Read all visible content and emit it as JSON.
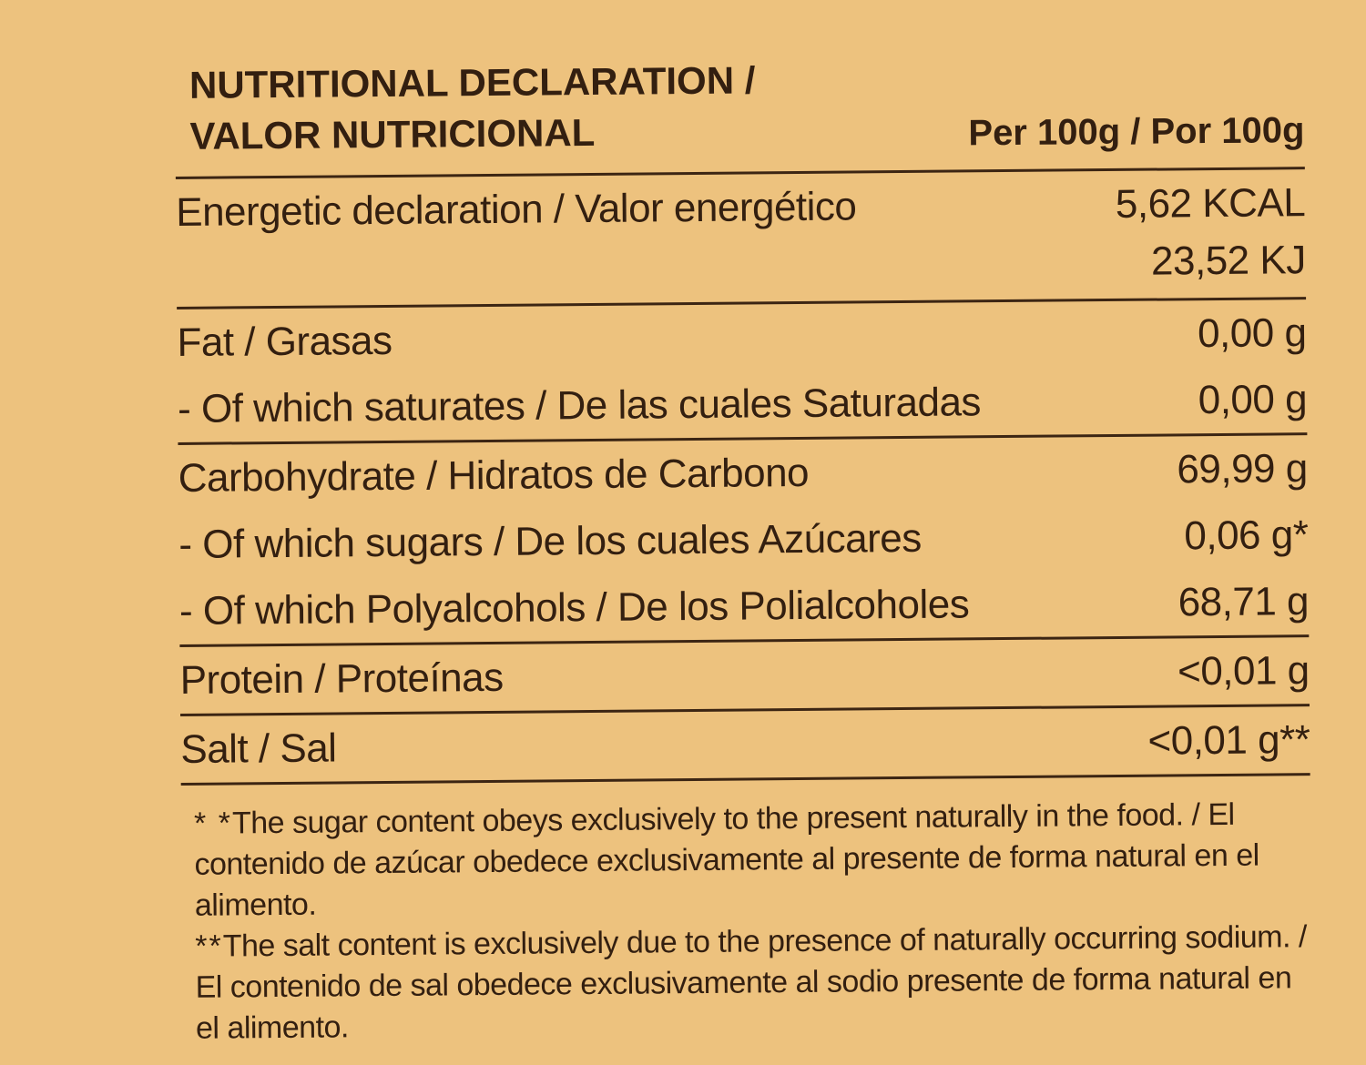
{
  "colors": {
    "background": "#edc27e",
    "ink": "#331f10"
  },
  "header": {
    "title_line1": "NUTRITIONAL DECLARATION /",
    "title_line2": "VALOR NUTRICIONAL",
    "per_column": "Per 100g / Por 100g"
  },
  "table": {
    "rows": [
      {
        "label": "Energetic declaration / Valor energético",
        "values": [
          "5,62 KCAL",
          "23,52 KJ"
        ]
      },
      {
        "label": "Fat / Grasas",
        "values": [
          "0,00 g"
        ]
      },
      {
        "label": "- Of which saturates / De las cuales Saturadas",
        "values": [
          "0,00 g"
        ]
      },
      {
        "label": "Carbohydrate / Hidratos de Carbono",
        "values": [
          "69,99 g"
        ]
      },
      {
        "label": "- Of which sugars / De los cuales Azúcares",
        "values": [
          "0,06 g*"
        ]
      },
      {
        "label": "- Of which Polyalcohols / De los Polialcoholes",
        "values": [
          "68,71 g"
        ]
      },
      {
        "label": "Protein / Proteínas",
        "values": [
          "<0,01 g"
        ]
      },
      {
        "label": "Salt / Sal",
        "values": [
          "<0,01 g**"
        ]
      }
    ]
  },
  "footnotes": [
    {
      "marker": "* *",
      "text": "The sugar content obeys exclusively to the present naturally in the food. / El contenido de azúcar obedece exclusivamente al presente de forma natural en el alimento."
    },
    {
      "marker": "**",
      "text": "The salt content is exclusively due to the presence of naturally occurring sodium. / El contenido de sal obedece exclusivamente al sodio presente de forma natural en el alimento."
    }
  ]
}
